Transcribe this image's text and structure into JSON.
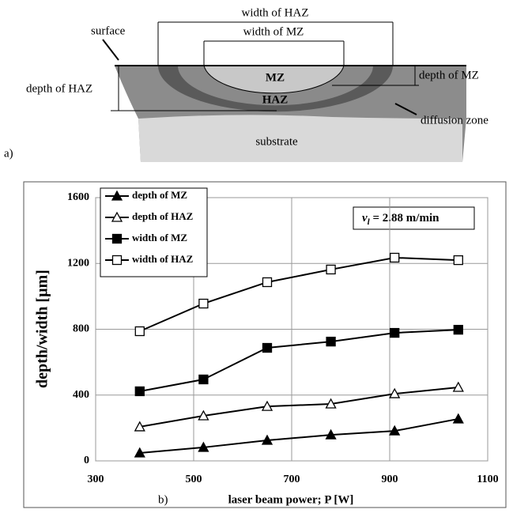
{
  "diagram": {
    "panel": "a)",
    "width_haz": "width of HAZ",
    "width_mz": "width of MZ",
    "surface": "surface",
    "depth_haz": "depth of HAZ",
    "depth_mz": "depth of MZ",
    "mz": "MZ",
    "haz": "HAZ",
    "diffusion": "diffusion zone",
    "substrate": "substrate"
  },
  "chart_data": {
    "type": "line",
    "panel": "b)",
    "x_label": "laser beam power; P [W]",
    "y_label": "depth/width [µm]",
    "annotation": {
      "symbol": "v",
      "subscript": "l",
      "text": " = 2.88 m/min"
    },
    "x": [
      390,
      520,
      650,
      780,
      910,
      1040
    ],
    "series": [
      {
        "name": "depth of MZ",
        "color": "#000000",
        "marker": "triangle",
        "filled": true,
        "values": [
          48,
          82,
          125,
          158,
          182,
          255
        ]
      },
      {
        "name": "depth of HAZ",
        "color": "#000000",
        "marker": "triangle",
        "filled": false,
        "values": [
          207,
          274,
          331,
          346,
          408,
          447
        ]
      },
      {
        "name": "width of MZ",
        "color": "#000000",
        "marker": "square",
        "filled": true,
        "values": [
          423,
          495,
          687,
          725,
          778,
          797
        ]
      },
      {
        "name": "width of HAZ",
        "color": "#000000",
        "marker": "square",
        "filled": false,
        "values": [
          788,
          956,
          1086,
          1163,
          1235,
          1220
        ]
      }
    ],
    "xlim": [
      300,
      1100
    ],
    "xticks": [
      300,
      500,
      700,
      900,
      1100
    ],
    "ylim": [
      0,
      1600
    ],
    "yticks": [
      0,
      400,
      800,
      1200,
      1600
    ],
    "grid": true,
    "legend": "top-left"
  }
}
